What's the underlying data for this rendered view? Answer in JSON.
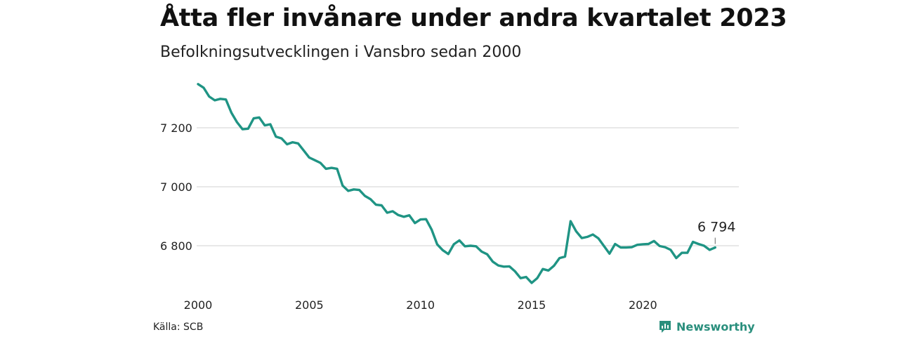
{
  "header": {
    "title": "Åtta fler invånare under andra kvartalet 2023",
    "subtitle": "Befolkningsutvecklingen i Vansbro sedan 2000"
  },
  "footer": {
    "source": "Källa: SCB",
    "brand": "Newsworthy"
  },
  "colors": {
    "line": "#1f9484",
    "grid": "#d9d9d9",
    "brand": "#2a8f7d"
  },
  "chart_data": {
    "type": "line",
    "x_start": 2000.0,
    "x_step": 0.25,
    "xlim": [
      2000,
      2023.5
    ],
    "ylim": [
      6650,
      7350
    ],
    "x_ticks": [
      2000,
      2005,
      2010,
      2015,
      2020
    ],
    "x_tick_labels": [
      "2000",
      "2005",
      "2010",
      "2015",
      "2020"
    ],
    "y_ticks": [
      6800,
      7000,
      7200
    ],
    "y_tick_labels": [
      "6 800",
      "7 000",
      "7 200"
    ],
    "grid": true,
    "end_label": "6 794",
    "values": [
      7348,
      7336,
      7306,
      7293,
      7298,
      7296,
      7251,
      7219,
      7195,
      7197,
      7232,
      7235,
      7208,
      7212,
      7170,
      7164,
      7144,
      7151,
      7147,
      7123,
      7099,
      7090,
      7081,
      7061,
      7064,
      7061,
      7004,
      6986,
      6991,
      6989,
      6969,
      6958,
      6939,
      6937,
      6912,
      6917,
      6904,
      6898,
      6903,
      6877,
      6889,
      6890,
      6855,
      6805,
      6785,
      6772,
      6805,
      6818,
      6798,
      6800,
      6798,
      6780,
      6771,
      6746,
      6733,
      6729,
      6730,
      6713,
      6690,
      6694,
      6674,
      6690,
      6721,
      6716,
      6732,
      6758,
      6763,
      6883,
      6849,
      6826,
      6830,
      6838,
      6825,
      6799,
      6773,
      6806,
      6794,
      6794,
      6795,
      6803,
      6805,
      6806,
      6816,
      6799,
      6795,
      6786,
      6758,
      6776,
      6776,
      6813,
      6806,
      6800,
      6786,
      6794
    ]
  }
}
